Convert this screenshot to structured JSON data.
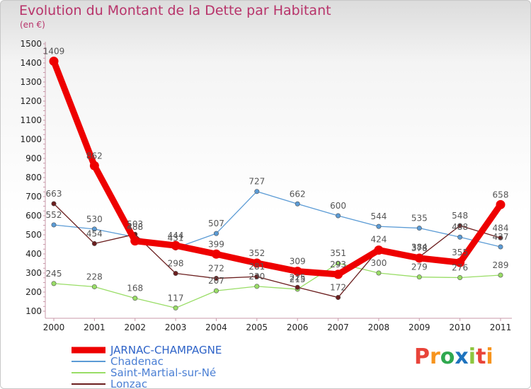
{
  "header": {
    "title": "Evolution du Montant de la Dette par Habitant",
    "unit": "(en €)"
  },
  "logo": {
    "text": "Proxiti",
    "colors": [
      "#e8443a",
      "#f7941d",
      "#2fa84f",
      "#1e73be",
      "#8dc63f",
      "#e8443a",
      "#f7941d"
    ]
  },
  "chart_data": {
    "type": "line",
    "title": "Evolution du Montant de la Dette par Habitant",
    "ylabel": "(en €)",
    "xlabel": "",
    "ylim": [
      100,
      1500
    ],
    "yticks": [
      100,
      200,
      300,
      400,
      500,
      600,
      700,
      800,
      900,
      1000,
      1100,
      1200,
      1300,
      1400,
      1500
    ],
    "grid": false,
    "legend_position": "bottom-left",
    "x": [
      "2000",
      "2001",
      "2002",
      "2003",
      "2004",
      "2005",
      "2006",
      "2007",
      "2008",
      "2009",
      "2010",
      "2011"
    ],
    "series": [
      {
        "name": "JARNAC-CHAMPAGNE",
        "color": "#ee0000",
        "emphasis": true,
        "values": [
          1409,
          862,
          468,
          444,
          399,
          352,
          309,
          293,
          420,
          378,
          355,
          658
        ],
        "labels": [
          "1409",
          "862",
          "",
          "444",
          "399",
          "352",
          "309",
          "293",
          "",
          "378",
          "355",
          "658"
        ]
      },
      {
        "name": "Chadenac",
        "color": "#5b9bd5",
        "values": [
          552,
          530,
          488,
          431,
          507,
          727,
          662,
          600,
          544,
          535,
          488,
          437
        ],
        "labels": [
          "552",
          "530",
          "488",
          "431",
          "507",
          "727",
          "662",
          "600",
          "544",
          "535",
          "488",
          "437"
        ]
      },
      {
        "name": "Saint-Martial-sur-Né",
        "color": "#99dd66",
        "values": [
          245,
          228,
          168,
          117,
          207,
          230,
          215,
          351,
          300,
          279,
          276,
          289
        ],
        "labels": [
          "245",
          "228",
          "168",
          "117",
          "207",
          "230",
          "215",
          "351",
          "300",
          "279",
          "276",
          "289"
        ]
      },
      {
        "name": "Lonzac",
        "color": "#6b1e1e",
        "values": [
          663,
          454,
          503,
          298,
          272,
          281,
          225,
          172,
          424,
          384,
          548,
          484
        ],
        "labels": [
          "663",
          "454",
          "503",
          "298",
          "272",
          "281",
          "225",
          "172",
          "424",
          "384",
          "548",
          "484"
        ]
      }
    ]
  }
}
